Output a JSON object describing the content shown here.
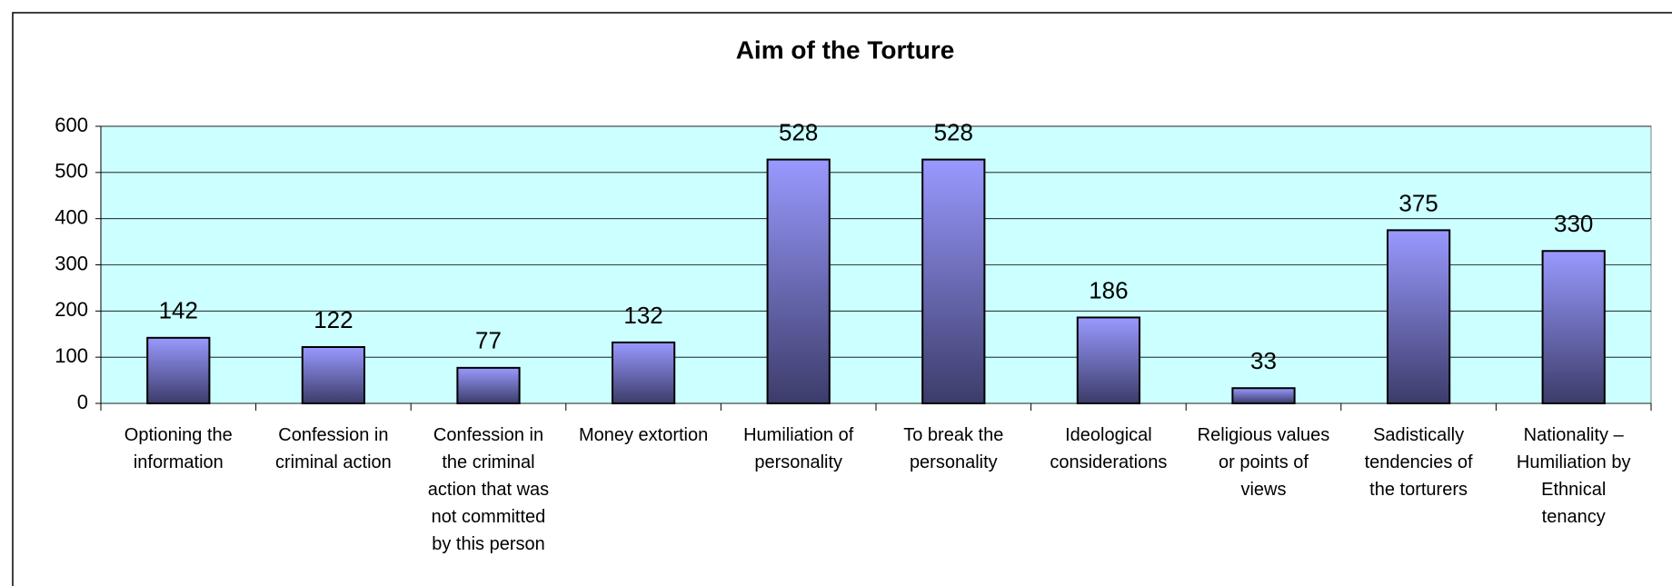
{
  "chart_data": {
    "type": "bar",
    "title": "Aim of the Torture",
    "categories": [
      "Optioning the information",
      "Confession in criminal action",
      "Confession in the criminal action that was not committed by this person",
      "Money extortion",
      "Humiliation of personality",
      "To break the personality",
      "Ideological considerations",
      "Religious values or points of views",
      "Sadistically tendencies of the torturers",
      "Nationality – Humiliation by Ethnical tenancy"
    ],
    "values": [
      142,
      122,
      77,
      132,
      528,
      528,
      186,
      33,
      375,
      330
    ],
    "color": "#9999ff",
    "ylim": [
      0,
      600
    ],
    "yticks": [
      0,
      100,
      200,
      300,
      400,
      500,
      600
    ],
    "grid": true
  }
}
